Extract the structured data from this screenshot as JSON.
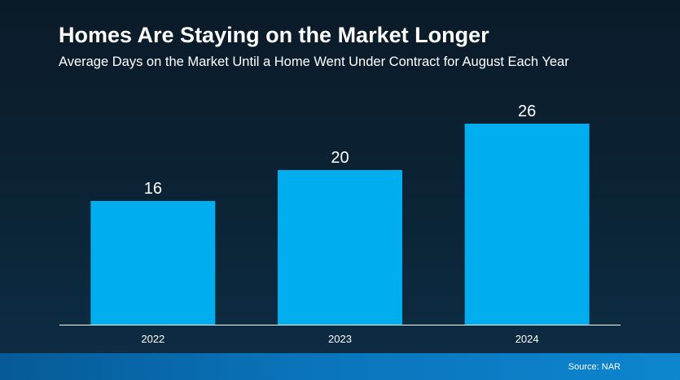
{
  "title": "Homes Are Staying on the Market Longer",
  "subtitle": "Average Days on the Market Until a Home Went Under Contract for August Each Year",
  "source": "Source: NAR",
  "chart_data": {
    "type": "bar",
    "title": "Homes Are Staying on the Market Longer",
    "subtitle": "Average Days on the Market Until a Home Went Under Contract for August Each Year",
    "categories": [
      "2022",
      "2023",
      "2024"
    ],
    "values": [
      16,
      20,
      26
    ],
    "data_labels": [
      "16",
      "20",
      "26"
    ],
    "xlabel": "",
    "ylabel": "",
    "ylim": [
      0,
      26
    ],
    "grid": false,
    "legend": "none",
    "bar_color": "#00aeef",
    "background_color": "#0b2436",
    "text_color": "#ffffff"
  }
}
